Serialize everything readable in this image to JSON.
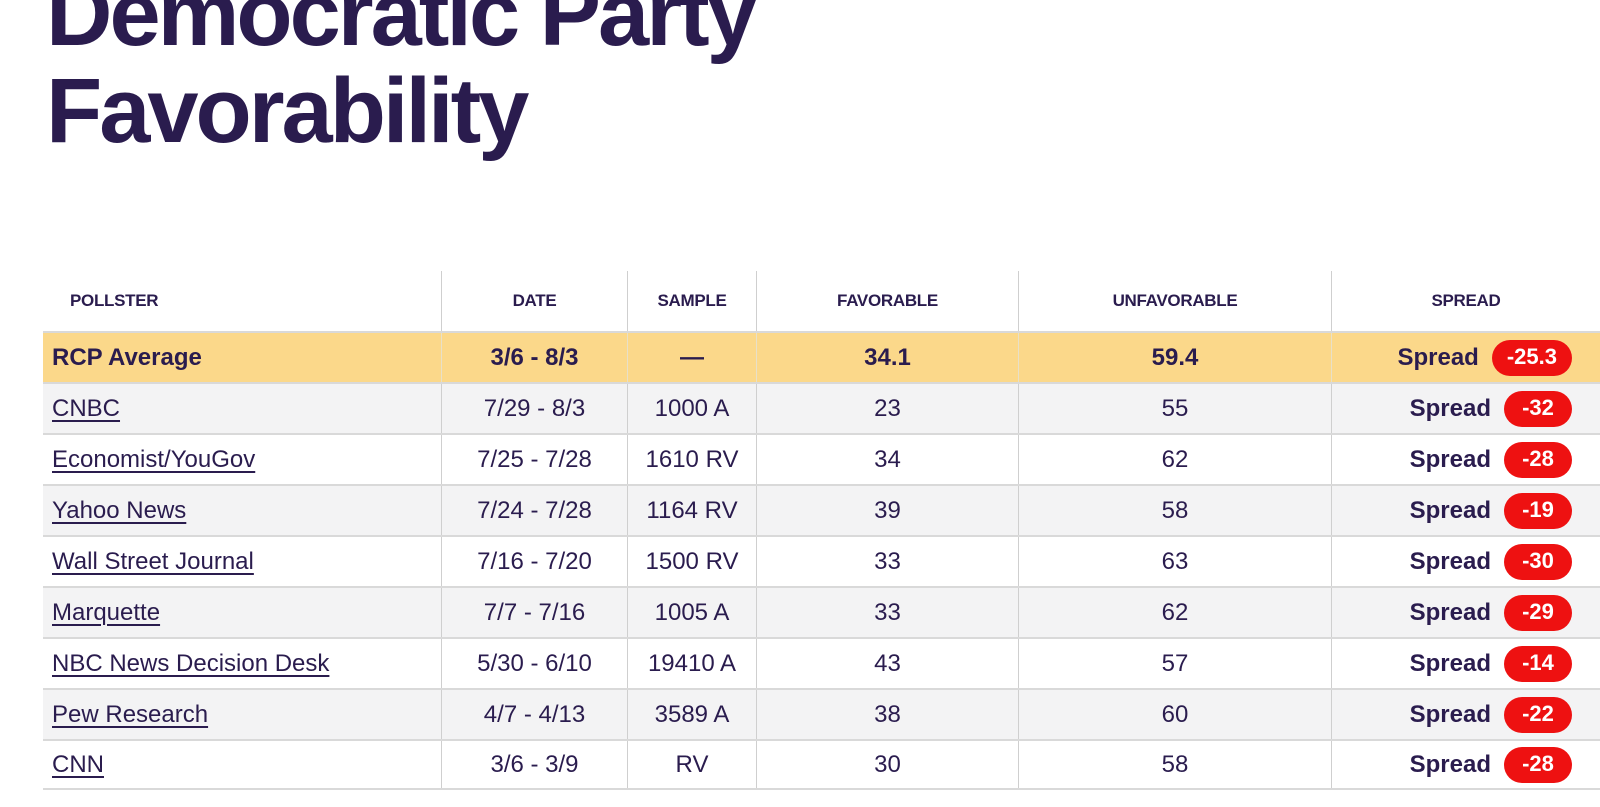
{
  "title": "Democratic Party Favorability",
  "colors": {
    "text_navy": "#2a1c4e",
    "average_row_yellow": "#fbd88a",
    "spread_badge_red": "#ee1111",
    "alt_row_gray": "#f3f3f4"
  },
  "table": {
    "columns": [
      "POLLSTER",
      "DATE",
      "SAMPLE",
      "FAVORABLE",
      "UNFAVORABLE",
      "SPREAD"
    ],
    "spread_label": "Spread",
    "average": {
      "pollster": "RCP Average",
      "date": "3/6 - 8/3",
      "sample": "—",
      "favorable": "34.1",
      "unfavorable": "59.4",
      "spread": "-25.3"
    },
    "rows": [
      {
        "pollster": "CNBC",
        "date": "7/29 - 8/3",
        "sample": "1000 A",
        "favorable": "23",
        "unfavorable": "55",
        "spread": "-32"
      },
      {
        "pollster": "Economist/YouGov",
        "date": "7/25 - 7/28",
        "sample": "1610 RV",
        "favorable": "34",
        "unfavorable": "62",
        "spread": "-28"
      },
      {
        "pollster": "Yahoo News",
        "date": "7/24 - 7/28",
        "sample": "1164 RV",
        "favorable": "39",
        "unfavorable": "58",
        "spread": "-19"
      },
      {
        "pollster": "Wall Street Journal",
        "date": "7/16 - 7/20",
        "sample": "1500 RV",
        "favorable": "33",
        "unfavorable": "63",
        "spread": "-30"
      },
      {
        "pollster": "Marquette",
        "date": "7/7 - 7/16",
        "sample": "1005 A",
        "favorable": "33",
        "unfavorable": "62",
        "spread": "-29"
      },
      {
        "pollster": "NBC News Decision Desk",
        "date": "5/30 - 6/10",
        "sample": "19410 A",
        "favorable": "43",
        "unfavorable": "57",
        "spread": "-14"
      },
      {
        "pollster": "Pew Research",
        "date": "4/7 - 4/13",
        "sample": "3589 A",
        "favorable": "38",
        "unfavorable": "60",
        "spread": "-22"
      },
      {
        "pollster": "CNN",
        "date": "3/6 - 3/9",
        "sample": "RV",
        "favorable": "30",
        "unfavorable": "58",
        "spread": "-28"
      }
    ]
  }
}
